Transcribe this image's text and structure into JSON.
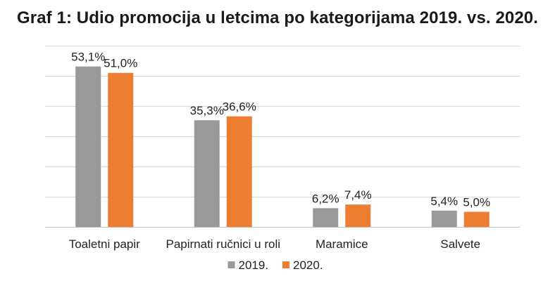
{
  "chart_data": {
    "type": "bar",
    "title": "Graf 1: Udio promocija u letcima po kategorijama 2019. vs. 2020.",
    "categories": [
      "Toaletni papir",
      "Papirnati ručnici u roli",
      "Maramice",
      "Salvete"
    ],
    "series": [
      {
        "name": "2019.",
        "color": "#999999",
        "values": [
          53.1,
          35.3,
          6.2,
          5.4
        ],
        "labels": [
          "53,1%",
          "35,3%",
          "6,2%",
          "5,4%"
        ]
      },
      {
        "name": "2020.",
        "color": "#ED7D31",
        "values": [
          51.0,
          36.6,
          7.4,
          5.0
        ],
        "labels": [
          "51,0%",
          "36,6%",
          "7,4%",
          "5,0%"
        ]
      }
    ],
    "ylim": [
      0,
      60
    ],
    "y_gridline_step": 10,
    "grid": true,
    "y_axis_labels_visible": false,
    "legend_position": "bottom"
  }
}
